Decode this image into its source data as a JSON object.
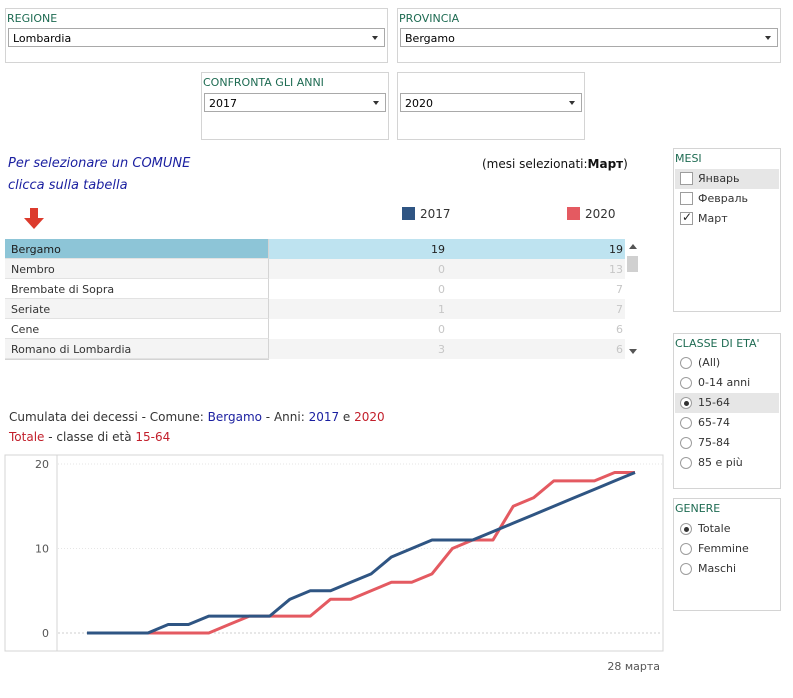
{
  "filters": {
    "regione": {
      "label": "REGIONE",
      "value": "Lombardia"
    },
    "provincia": {
      "label": "PROVINCIA",
      "value": "Bergamo"
    },
    "anni": {
      "label": "CONFRONTA GLI ANNI",
      "year1": "2017",
      "year2": "2020"
    }
  },
  "instructions": {
    "line1": "Per selezionare un COMUNE",
    "line2": "clicca sulla tabella"
  },
  "months_selected": {
    "prefix": "(mesi selezionati:",
    "value": "Март",
    "suffix": ")"
  },
  "legend": [
    {
      "label": "2017",
      "color": "#2f5583"
    },
    {
      "label": "2020",
      "color": "#e45a61"
    }
  ],
  "table": {
    "rows": [
      {
        "name": "Bergamo",
        "v2017": "19",
        "v2020": "19"
      },
      {
        "name": "Nembro",
        "v2017": "0",
        "v2020": "13"
      },
      {
        "name": "Brembate di Sopra",
        "v2017": "0",
        "v2020": "7"
      },
      {
        "name": "Seriate",
        "v2017": "1",
        "v2020": "7"
      },
      {
        "name": "Cene",
        "v2017": "0",
        "v2020": "6"
      },
      {
        "name": "Romano di Lombardia",
        "v2017": "3",
        "v2020": "6"
      }
    ]
  },
  "chart_header": {
    "line1_prefix": "Cumulata dei decessi - Comune: ",
    "comune": "Bergamo",
    "line1_mid": " - Anni: ",
    "year1": "2017",
    "and": " e ",
    "year2": "2020",
    "line2_total": "Totale",
    "line2_mid": " - classe di età ",
    "age": "15-64"
  },
  "sidebar": {
    "mesi": {
      "title": "MESI",
      "items": [
        {
          "label": "Январь",
          "checked": false
        },
        {
          "label": "Февраль",
          "checked": false
        },
        {
          "label": "Март",
          "checked": true
        }
      ]
    },
    "classe": {
      "title": "CLASSE DI ETA'",
      "items": [
        {
          "label": "(All)",
          "selected": false
        },
        {
          "label": "0-14 anni",
          "selected": false
        },
        {
          "label": "15-64",
          "selected": true
        },
        {
          "label": "65-74",
          "selected": false
        },
        {
          "label": "75-84",
          "selected": false
        },
        {
          "label": "85 e più",
          "selected": false
        }
      ]
    },
    "genere": {
      "title": "GENERE",
      "items": [
        {
          "label": "Totale",
          "selected": true
        },
        {
          "label": "Femmine",
          "selected": false
        },
        {
          "label": "Maschi",
          "selected": false
        }
      ]
    }
  },
  "chart_data": {
    "type": "line",
    "x_tick_label": "28 марта",
    "ylim": [
      0,
      20
    ],
    "y_ticks": [
      "0",
      "10",
      "20"
    ],
    "x": [
      1,
      2,
      3,
      4,
      5,
      6,
      7,
      8,
      9,
      10,
      11,
      12,
      13,
      14,
      15,
      16,
      17,
      18,
      19,
      20,
      21,
      22,
      23,
      24,
      25,
      26,
      27,
      28
    ],
    "series": [
      {
        "name": "2017",
        "color": "#2f5583",
        "values": [
          0,
          0,
          0,
          0,
          1,
          1,
          2,
          2,
          2,
          2,
          4,
          5,
          5,
          6,
          7,
          9,
          10,
          11,
          11,
          11,
          12,
          13,
          14,
          15,
          16,
          17,
          18,
          19
        ]
      },
      {
        "name": "2020",
        "color": "#e45a61",
        "values": [
          0,
          0,
          0,
          0,
          0,
          0,
          0,
          1,
          2,
          2,
          2,
          2,
          4,
          4,
          5,
          6,
          6,
          7,
          10,
          11,
          11,
          15,
          16,
          18,
          18,
          18,
          19,
          19
        ]
      }
    ]
  }
}
